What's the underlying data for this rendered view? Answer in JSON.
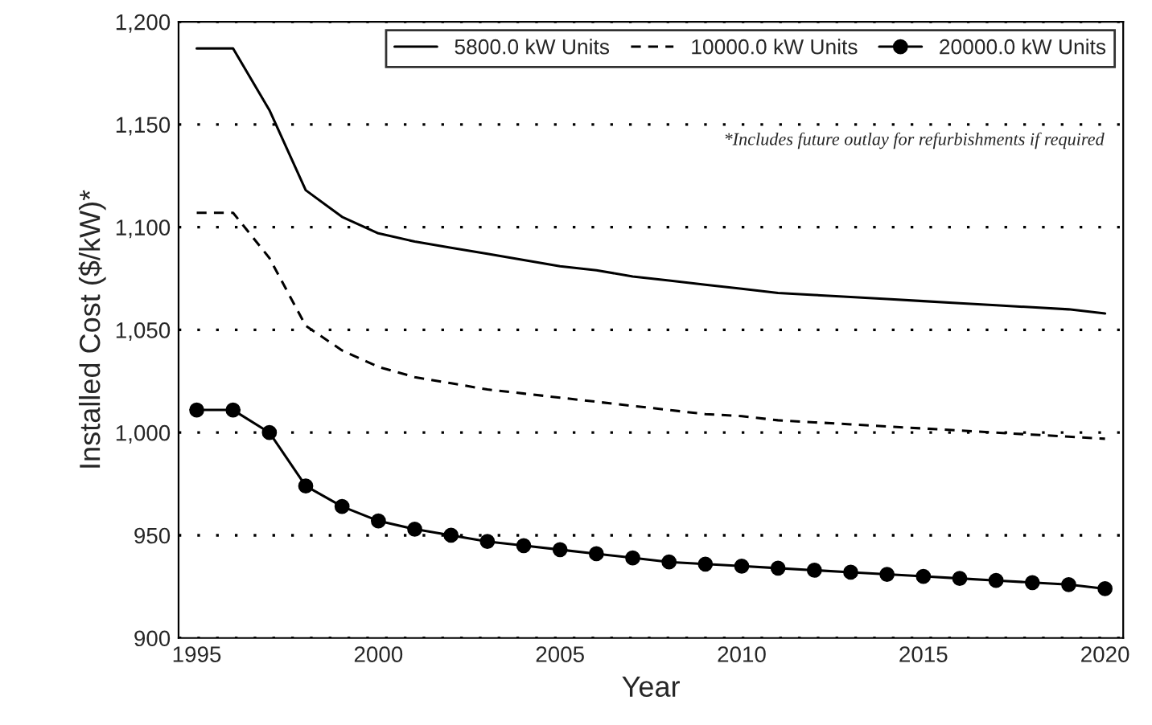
{
  "chart_data": {
    "type": "line",
    "xlabel": "Year",
    "ylabel": "Installed Cost ($/kW)*",
    "x": [
      1995,
      1996,
      1997,
      1998,
      1999,
      2000,
      2001,
      2002,
      2003,
      2004,
      2005,
      2006,
      2007,
      2008,
      2009,
      2010,
      2011,
      2012,
      2013,
      2014,
      2015,
      2016,
      2017,
      2018,
      2019,
      2020
    ],
    "series": [
      {
        "name": "5800.0 kW Units",
        "color": "#000000",
        "line_style": "solid",
        "marker": "none",
        "values": [
          1187,
          1187,
          1157,
          1118,
          1105,
          1097,
          1093,
          1090,
          1087,
          1084,
          1081,
          1079,
          1076,
          1074,
          1072,
          1070,
          1068,
          1067,
          1066,
          1065,
          1064,
          1063,
          1062,
          1061,
          1060,
          1058
        ]
      },
      {
        "name": "10000.0 kW Units",
        "color": "#000000",
        "line_style": "dashed",
        "marker": "none",
        "values": [
          1107,
          1107,
          1085,
          1052,
          1040,
          1032,
          1027,
          1024,
          1021,
          1019,
          1017,
          1015,
          1013,
          1011,
          1009,
          1008,
          1006,
          1005,
          1004,
          1003,
          1002,
          1001,
          1000,
          999,
          998,
          997
        ]
      },
      {
        "name": "20000.0 kW Units",
        "color": "#000000",
        "line_style": "solid",
        "marker": "circle",
        "values": [
          1011,
          1011,
          1000,
          974,
          964,
          957,
          953,
          950,
          947,
          945,
          943,
          941,
          939,
          937,
          936,
          935,
          934,
          933,
          932,
          931,
          930,
          929,
          928,
          927,
          926,
          924
        ]
      }
    ],
    "xlim": [
      1994.5,
      2020.5
    ],
    "xticks": [
      1995,
      2000,
      2005,
      2010,
      2015,
      2020
    ],
    "ylim": [
      900,
      1200
    ],
    "yticks": [
      {
        "value": 900,
        "label": "900"
      },
      {
        "value": 950,
        "label": "950"
      },
      {
        "value": 1000,
        "label": "1,000"
      },
      {
        "value": 1050,
        "label": "1,050"
      },
      {
        "value": 1100,
        "label": "1,100"
      },
      {
        "value": 1150,
        "label": "1,150"
      },
      {
        "value": 1200,
        "label": "1,200"
      }
    ],
    "grid": "y",
    "legend": "top right",
    "annotations": [
      "*Includes future outlay for refurbishments if required"
    ]
  }
}
